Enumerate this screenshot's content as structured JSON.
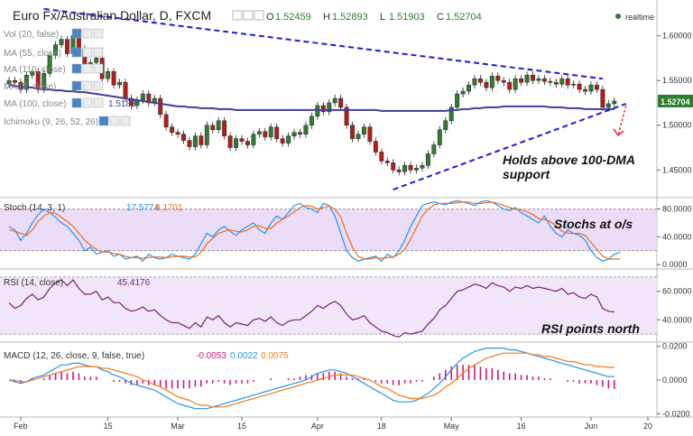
{
  "header": {
    "symbol": "Euro Fx/Australian Dollar, D, FXCM",
    "ohlc": [
      {
        "k": "O",
        "v": "1.52459"
      },
      {
        "k": "H",
        "v": "1.52893"
      },
      {
        "k": "L",
        "v": "1.51903"
      },
      {
        "k": "C",
        "v": "1.52704"
      }
    ],
    "realtime": "realtime"
  },
  "studies": [
    {
      "name": "Vol (20, false)",
      "value": ""
    },
    {
      "name": "MA (55, close)",
      "value": ""
    },
    {
      "name": "MA (110, close)",
      "value": ""
    },
    {
      "name": "MA (9, close)",
      "value": ""
    },
    {
      "name": "MA (100, close)",
      "value": "1.5183"
    },
    {
      "name": "Ichimoku (9, 26, 52, 26)",
      "value": ""
    }
  ],
  "price_axis": {
    "ticks": [
      "1.60000",
      "1.55000",
      "1.50000",
      "1.45000"
    ],
    "last": "1.52704"
  },
  "stoch": {
    "label": "Stoch (14, 3, 1)",
    "k": "17.5774",
    "d": "8.1701",
    "ticks": [
      "80.0000",
      "40.0000",
      "0.0000"
    ]
  },
  "rsi": {
    "label": "RSI (14, close)",
    "value": "45.4176",
    "ticks": [
      "60.0000",
      "40.0000"
    ]
  },
  "macd": {
    "label": "MACD (12, 26, close, 9, false, true)",
    "hist": "-0.0053",
    "macd": "0.0022",
    "signal": "0.0075",
    "ticks": [
      "0.0200",
      "0.0000",
      "-0.0200"
    ]
  },
  "time_axis": [
    "Feb",
    "15",
    "Mar",
    "15",
    "Apr",
    "18",
    "May",
    "16",
    "Jun",
    "20"
  ],
  "annotations": {
    "dma": [
      "Holds above 100-DMA",
      "support"
    ],
    "stoch": "Stochs at o/s",
    "rsi": "RSI points north"
  },
  "colors": {
    "up": "#2e7d32",
    "down": "#b71c1c",
    "ma100": "#3f3f9f",
    "trend": "#1a1adf",
    "stoch_k": "#2196f3",
    "stoch_d": "#f26c1a",
    "rsi": "#7b1f7b",
    "macd": "#2196f3",
    "signal": "#f07c1a",
    "hist": "#d0187a",
    "arrow": "#e53935"
  },
  "chart_data": [
    {
      "type": "candlestick",
      "title": "Euro Fx/Australian Dollar, D, FXCM",
      "x_label_ticks": [
        "Feb",
        "15",
        "Mar",
        "15",
        "Apr",
        "18",
        "May",
        "16",
        "Jun",
        "20"
      ],
      "ylim": [
        1.42,
        1.64
      ],
      "y_ticks": [
        1.6,
        1.55,
        1.5,
        1.45
      ],
      "last_close": 1.52704,
      "closes": [
        1.55,
        1.548,
        1.54,
        1.556,
        1.56,
        1.54,
        1.558,
        1.578,
        1.59,
        1.596,
        1.58,
        1.6,
        1.585,
        1.568,
        1.57,
        1.575,
        1.552,
        1.56,
        1.545,
        1.548,
        1.53,
        1.522,
        1.528,
        1.535,
        1.525,
        1.53,
        1.512,
        1.498,
        1.492,
        1.49,
        1.483,
        1.476,
        1.488,
        1.478,
        1.5,
        1.495,
        1.505,
        1.488,
        1.475,
        1.485,
        1.482,
        1.478,
        1.49,
        1.493,
        1.487,
        1.498,
        1.485,
        1.48,
        1.488,
        1.492,
        1.49,
        1.5,
        1.51,
        1.522,
        1.515,
        1.525,
        1.53,
        1.52,
        1.5,
        1.485,
        1.49,
        1.498,
        1.482,
        1.47,
        1.46,
        1.458,
        1.45,
        1.448,
        1.455,
        1.45,
        1.452,
        1.455,
        1.468,
        1.478,
        1.495,
        1.505,
        1.52,
        1.535,
        1.538,
        1.545,
        1.552,
        1.548,
        1.542,
        1.555,
        1.55,
        1.548,
        1.54,
        1.552,
        1.548,
        1.556,
        1.55,
        1.552,
        1.549,
        1.548,
        1.546,
        1.552,
        1.545,
        1.546,
        1.54,
        1.538,
        1.545,
        1.54,
        1.52,
        1.524,
        1.527
      ],
      "series": [
        {
          "name": "MA (100, close)",
          "values": [
            1.545,
            1.544,
            1.543,
            1.543,
            1.542,
            1.541,
            1.54,
            1.54,
            1.539,
            1.539,
            1.538,
            1.538,
            1.537,
            1.537,
            1.536,
            1.535,
            1.534,
            1.533,
            1.532,
            1.531,
            1.53,
            1.529,
            1.528,
            1.527,
            1.526,
            1.525,
            1.524,
            1.523,
            1.522,
            1.521,
            1.521,
            1.52,
            1.52,
            1.519,
            1.519,
            1.519,
            1.518,
            1.518,
            1.518,
            1.517,
            1.517,
            1.517,
            1.517,
            1.517,
            1.517,
            1.517,
            1.517,
            1.517,
            1.517,
            1.517,
            1.517,
            1.517,
            1.517,
            1.517,
            1.517,
            1.517,
            1.517,
            1.517,
            1.517,
            1.517,
            1.517,
            1.517,
            1.517,
            1.517,
            1.516,
            1.516,
            1.516,
            1.516,
            1.516,
            1.516,
            1.516,
            1.516,
            1.516,
            1.516,
            1.516,
            1.516,
            1.517,
            1.517,
            1.518,
            1.518,
            1.519,
            1.519,
            1.52,
            1.52,
            1.52,
            1.521,
            1.521,
            1.521,
            1.521,
            1.521,
            1.521,
            1.521,
            1.521,
            1.52,
            1.52,
            1.52,
            1.519,
            1.519,
            1.519,
            1.518,
            1.518,
            1.518,
            1.518,
            1.518,
            1.518
          ]
        }
      ],
      "trendlines": [
        {
          "name": "upper",
          "points": [
            [
              6,
              1.63
            ],
            [
              102,
              1.552
            ]
          ]
        },
        {
          "name": "lower",
          "points": [
            [
              66,
              1.428
            ],
            [
              106,
              1.524
            ]
          ]
        }
      ]
    },
    {
      "type": "line",
      "title": "Stoch (14, 3, 1)",
      "ylim": [
        -5,
        95
      ],
      "y_ticks": [
        80,
        40,
        0
      ],
      "series": [
        {
          "name": "%K",
          "values": [
            55,
            50,
            35,
            45,
            60,
            72,
            80,
            75,
            68,
            60,
            55,
            45,
            35,
            20,
            25,
            15,
            18,
            20,
            12,
            15,
            8,
            10,
            12,
            5,
            15,
            10,
            8,
            10,
            15,
            12,
            10,
            8,
            15,
            30,
            45,
            40,
            50,
            55,
            48,
            42,
            50,
            55,
            60,
            50,
            45,
            60,
            70,
            65,
            75,
            85,
            88,
            82,
            80,
            75,
            88,
            85,
            70,
            45,
            20,
            10,
            5,
            8,
            10,
            12,
            5,
            15,
            10,
            20,
            35,
            55,
            70,
            85,
            88,
            90,
            88,
            86,
            90,
            92,
            90,
            88,
            85,
            90,
            92,
            90,
            85,
            80,
            78,
            82,
            75,
            70,
            65,
            60,
            70,
            55,
            45,
            40,
            50,
            45,
            42,
            35,
            20,
            10,
            5,
            8,
            15,
            17.58
          ]
        },
        {
          "name": "%D",
          "values": [
            50,
            48,
            45,
            42,
            50,
            62,
            70,
            75,
            74,
            68,
            62,
            55,
            45,
            35,
            28,
            22,
            18,
            18,
            16,
            15,
            12,
            10,
            10,
            9,
            10,
            11,
            11,
            10,
            11,
            12,
            12,
            11,
            11,
            18,
            30,
            38,
            45,
            48,
            50,
            48,
            47,
            50,
            55,
            56,
            52,
            52,
            60,
            65,
            70,
            76,
            82,
            85,
            84,
            80,
            82,
            84,
            80,
            68,
            45,
            25,
            12,
            8,
            8,
            10,
            9,
            10,
            11,
            15,
            22,
            37,
            53,
            70,
            80,
            86,
            88,
            88,
            88,
            89,
            90,
            90,
            88,
            88,
            89,
            90,
            88,
            85,
            82,
            80,
            79,
            76,
            72,
            66,
            65,
            62,
            56,
            48,
            45,
            45,
            45,
            42,
            32,
            22,
            12,
            8,
            8,
            8.17
          ]
        }
      ]
    },
    {
      "type": "line",
      "title": "RSI (14, close)",
      "ylim": [
        25,
        75
      ],
      "y_ticks": [
        60,
        40
      ],
      "series": [
        {
          "name": "RSI",
          "values": [
            52,
            48,
            50,
            55,
            58,
            54,
            56,
            62,
            66,
            68,
            64,
            68,
            62,
            58,
            58,
            60,
            54,
            56,
            52,
            52,
            48,
            46,
            47,
            49,
            46,
            47,
            43,
            40,
            38,
            38,
            36,
            34,
            38,
            35,
            42,
            40,
            43,
            38,
            35,
            38,
            37,
            36,
            40,
            41,
            39,
            42,
            38,
            36,
            39,
            40,
            40,
            43,
            46,
            50,
            48,
            51,
            53,
            50,
            44,
            40,
            41,
            43,
            38,
            35,
            32,
            31,
            29,
            28,
            31,
            30,
            31,
            32,
            37,
            41,
            47,
            50,
            55,
            60,
            61,
            63,
            65,
            64,
            62,
            66,
            64,
            63,
            60,
            63,
            62,
            64,
            62,
            63,
            62,
            61,
            60,
            62,
            58,
            59,
            56,
            55,
            58,
            56,
            48,
            46,
            45.42
          ]
        }
      ]
    },
    {
      "type": "bar",
      "title": "MACD (12, 26, close, 9, false, true)",
      "ylim": [
        -0.022,
        0.022
      ],
      "y_ticks": [
        0.02,
        0.0,
        -0.02
      ],
      "series": [
        {
          "name": "Histogram",
          "values": [
            0.0,
            -0.001,
            -0.002,
            0.0,
            0.001,
            0.0,
            0.001,
            0.003,
            0.004,
            0.005,
            0.004,
            0.005,
            0.004,
            0.002,
            0.002,
            0.002,
            0.0,
            0.0,
            -0.001,
            -0.001,
            -0.002,
            -0.003,
            -0.003,
            -0.002,
            -0.003,
            -0.003,
            -0.004,
            -0.005,
            -0.005,
            -0.005,
            -0.005,
            -0.005,
            -0.004,
            -0.004,
            -0.002,
            -0.002,
            -0.001,
            -0.002,
            -0.003,
            -0.002,
            -0.002,
            -0.002,
            -0.001,
            0.0,
            0.0,
            0.001,
            0.0,
            0.0,
            0.001,
            0.001,
            0.002,
            0.003,
            0.003,
            0.004,
            0.004,
            0.005,
            0.005,
            0.004,
            0.002,
            0.001,
            0.001,
            0.001,
            0.0,
            -0.001,
            -0.002,
            -0.002,
            -0.003,
            -0.003,
            -0.002,
            -0.002,
            -0.001,
            -0.001,
            0.0,
            0.002,
            0.004,
            0.006,
            0.008,
            0.009,
            0.009,
            0.009,
            0.009,
            0.008,
            0.007,
            0.007,
            0.006,
            0.005,
            0.004,
            0.004,
            0.003,
            0.003,
            0.002,
            0.002,
            0.001,
            0.001,
            0.0,
            0.0,
            -0.001,
            -0.001,
            -0.002,
            -0.002,
            -0.002,
            -0.003,
            -0.004,
            -0.005,
            -0.0053
          ]
        },
        {
          "name": "MACD",
          "values": [
            0.0,
            -0.001,
            -0.002,
            -0.001,
            0.001,
            0.002,
            0.003,
            0.005,
            0.007,
            0.009,
            0.009,
            0.01,
            0.01,
            0.009,
            0.008,
            0.008,
            0.006,
            0.005,
            0.003,
            0.002,
            0.0,
            -0.002,
            -0.003,
            -0.004,
            -0.005,
            -0.006,
            -0.008,
            -0.01,
            -0.012,
            -0.014,
            -0.015,
            -0.016,
            -0.017,
            -0.017,
            -0.017,
            -0.016,
            -0.015,
            -0.014,
            -0.013,
            -0.012,
            -0.011,
            -0.01,
            -0.009,
            -0.008,
            -0.007,
            -0.006,
            -0.005,
            -0.004,
            -0.003,
            -0.002,
            -0.001,
            0.0,
            0.002,
            0.004,
            0.005,
            0.006,
            0.006,
            0.005,
            0.004,
            0.002,
            0.0,
            -0.002,
            -0.004,
            -0.006,
            -0.008,
            -0.01,
            -0.012,
            -0.013,
            -0.013,
            -0.013,
            -0.012,
            -0.01,
            -0.008,
            -0.005,
            -0.002,
            0.002,
            0.006,
            0.01,
            0.013,
            0.015,
            0.017,
            0.018,
            0.019,
            0.019,
            0.019,
            0.019,
            0.018,
            0.018,
            0.017,
            0.016,
            0.015,
            0.014,
            0.013,
            0.012,
            0.011,
            0.01,
            0.009,
            0.008,
            0.007,
            0.006,
            0.005,
            0.004,
            0.003,
            0.002,
            0.0022
          ]
        },
        {
          "name": "Signal",
          "values": [
            0.0,
            0.0,
            -0.001,
            -0.001,
            0.0,
            0.001,
            0.002,
            0.003,
            0.004,
            0.005,
            0.006,
            0.007,
            0.008,
            0.008,
            0.008,
            0.008,
            0.007,
            0.007,
            0.006,
            0.005,
            0.004,
            0.003,
            0.002,
            0.0,
            -0.001,
            -0.003,
            -0.004,
            -0.006,
            -0.008,
            -0.01,
            -0.011,
            -0.012,
            -0.014,
            -0.015,
            -0.015,
            -0.016,
            -0.016,
            -0.016,
            -0.015,
            -0.014,
            -0.013,
            -0.012,
            -0.011,
            -0.01,
            -0.009,
            -0.008,
            -0.007,
            -0.006,
            -0.005,
            -0.004,
            -0.003,
            -0.002,
            -0.001,
            0.0,
            0.001,
            0.002,
            0.003,
            0.003,
            0.003,
            0.003,
            0.002,
            0.001,
            0.0,
            -0.002,
            -0.004,
            -0.005,
            -0.007,
            -0.009,
            -0.01,
            -0.011,
            -0.011,
            -0.011,
            -0.01,
            -0.009,
            -0.007,
            -0.004,
            -0.002,
            0.001,
            0.004,
            0.007,
            0.009,
            0.011,
            0.013,
            0.014,
            0.015,
            0.016,
            0.016,
            0.016,
            0.016,
            0.016,
            0.015,
            0.015,
            0.014,
            0.014,
            0.013,
            0.012,
            0.011,
            0.011,
            0.01,
            0.009,
            0.009,
            0.008,
            0.008,
            0.0075,
            0.0075
          ]
        }
      ]
    }
  ]
}
